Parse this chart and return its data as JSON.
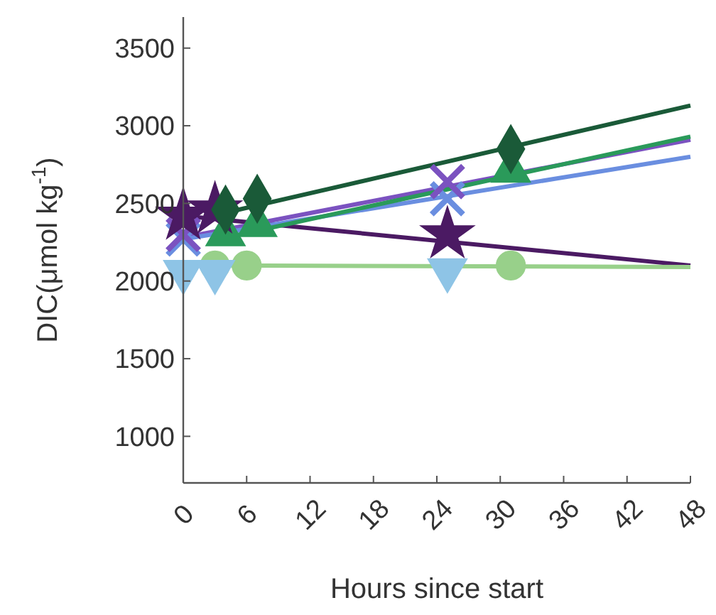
{
  "chart_data": {
    "type": "scatter",
    "xlabel": "Hours since start",
    "ylabel": "DIC(μmol kg$^{-1}$)",
    "xlim": [
      0,
      48
    ],
    "xticks": [
      0,
      6,
      12,
      18,
      24,
      30,
      36,
      42,
      48
    ],
    "ylim": [
      700,
      3700
    ],
    "yticks": [
      1000,
      1500,
      2000,
      2500,
      3000,
      3500
    ],
    "grid": false,
    "series": [
      {
        "type": "line",
        "color": "#4b1a63",
        "x": [
          0,
          48
        ],
        "values": [
          2420,
          2100
        ]
      },
      {
        "type": "line",
        "color": "#7b52c0",
        "x": [
          0,
          48
        ],
        "values": [
          2280,
          2910
        ]
      },
      {
        "type": "line",
        "color": "#6a8ee0",
        "x": [
          0,
          48
        ],
        "values": [
          2270,
          2800
        ]
      },
      {
        "type": "line",
        "color": "#1a5a38",
        "x": [
          4,
          48
        ],
        "values": [
          2440,
          3130
        ]
      },
      {
        "type": "line",
        "color": "#2a9a5a",
        "x": [
          4,
          48
        ],
        "values": [
          2280,
          2930
        ]
      },
      {
        "type": "line",
        "color": "#98d08a",
        "x": [
          3,
          48
        ],
        "values": [
          2100,
          2090
        ]
      },
      {
        "color": "#98d08a",
        "x": [
          3,
          6,
          31
        ],
        "values": [
          2100,
          2100,
          2100
        ],
        "marker": "circle"
      },
      {
        "color": "#8ec4e6",
        "x": [
          0,
          3,
          25
        ],
        "values": [
          2060,
          2060,
          2070
        ],
        "marker": "triangle-down"
      },
      {
        "color": "#6a8ee0",
        "x": [
          0,
          25
        ],
        "values": [
          2270,
          2530
        ],
        "marker": "cross"
      },
      {
        "color": "#7b52c0",
        "x": [
          0,
          25
        ],
        "values": [
          2300,
          2640
        ],
        "marker": "cross"
      },
      {
        "color": "#2a9a5a",
        "x": [
          4,
          7,
          31
        ],
        "values": [
          2300,
          2360,
          2710
        ],
        "marker": "triangle"
      },
      {
        "color": "#4b1a63",
        "x": [
          0,
          3,
          25
        ],
        "values": [
          2420,
          2460,
          2300
        ],
        "marker": "star"
      },
      {
        "color": "#1a5a38",
        "x": [
          4,
          7,
          31
        ],
        "values": [
          2460,
          2530,
          2850
        ],
        "marker": "diamond"
      }
    ]
  }
}
